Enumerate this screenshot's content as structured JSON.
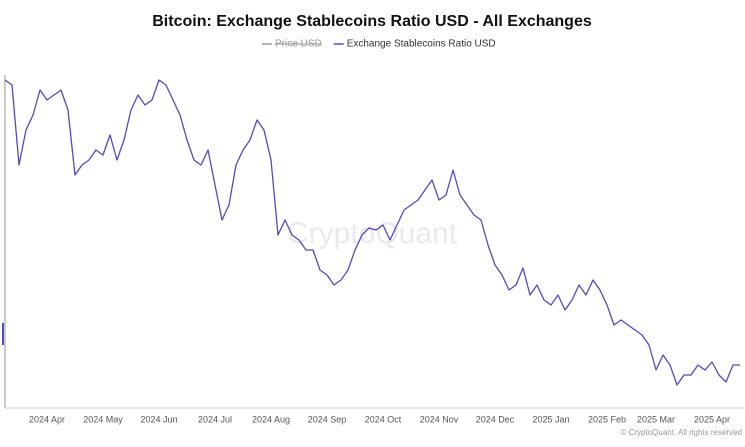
{
  "chart_data": {
    "type": "line",
    "title": "Bitcoin: Exchange Stablecoins Ratio USD - All Exchanges",
    "watermark": "CryptoQuant",
    "footer": "© CryptoQuant. All rights reserved",
    "hidden_series": [
      {
        "name": "Price USD",
        "color": "#9a9a9a"
      }
    ],
    "categories": [
      null,
      null,
      null,
      null,
      null,
      null,
      "2024 Apr",
      null,
      null,
      null,
      null,
      null,
      null,
      null,
      "2024 May",
      null,
      null,
      null,
      null,
      null,
      null,
      null,
      "2024 Jun",
      null,
      null,
      null,
      null,
      null,
      null,
      null,
      "2024 Jul",
      null,
      null,
      null,
      null,
      null,
      null,
      null,
      "2024 Aug",
      null,
      null,
      null,
      null,
      null,
      null,
      null,
      "2024 Sep",
      null,
      null,
      null,
      null,
      null,
      null,
      null,
      "2024 Oct",
      null,
      null,
      null,
      null,
      null,
      null,
      null,
      "2024 Nov",
      null,
      null,
      null,
      null,
      null,
      null,
      null,
      "2024 Dec",
      null,
      null,
      null,
      null,
      null,
      null,
      null,
      "2025 Jan",
      null,
      null,
      null,
      null,
      null,
      null,
      null,
      "2025 Feb",
      null,
      null,
      null,
      null,
      null,
      null,
      "2025 Mar",
      null,
      null,
      null,
      null,
      null,
      null,
      null,
      "2025 Apr",
      null,
      null,
      null,
      null
    ],
    "series": [
      {
        "name": "Exchange Stablecoins Ratio USD",
        "color": "#5448c8",
        "values": [
          330,
          325,
          245,
          280,
          295,
          320,
          310,
          315,
          320,
          300,
          235,
          245,
          250,
          260,
          255,
          275,
          250,
          270,
          300,
          315,
          305,
          310,
          330,
          325,
          310,
          295,
          270,
          250,
          245,
          260,
          225,
          190,
          205,
          245,
          260,
          270,
          290,
          280,
          250,
          175,
          190,
          175,
          170,
          160,
          160,
          140,
          135,
          125,
          130,
          140,
          160,
          175,
          182,
          180,
          185,
          170,
          185,
          200,
          205,
          210,
          220,
          230,
          210,
          215,
          240,
          215,
          205,
          195,
          190,
          165,
          145,
          135,
          120,
          125,
          142,
          115,
          125,
          110,
          105,
          115,
          100,
          110,
          125,
          115,
          130,
          120,
          105,
          85,
          90,
          85,
          80,
          75,
          65,
          40,
          55,
          45,
          25,
          35,
          35,
          45,
          40,
          48,
          35,
          28,
          45,
          45
        ]
      }
    ],
    "ylim": [
      0,
      340
    ]
  }
}
